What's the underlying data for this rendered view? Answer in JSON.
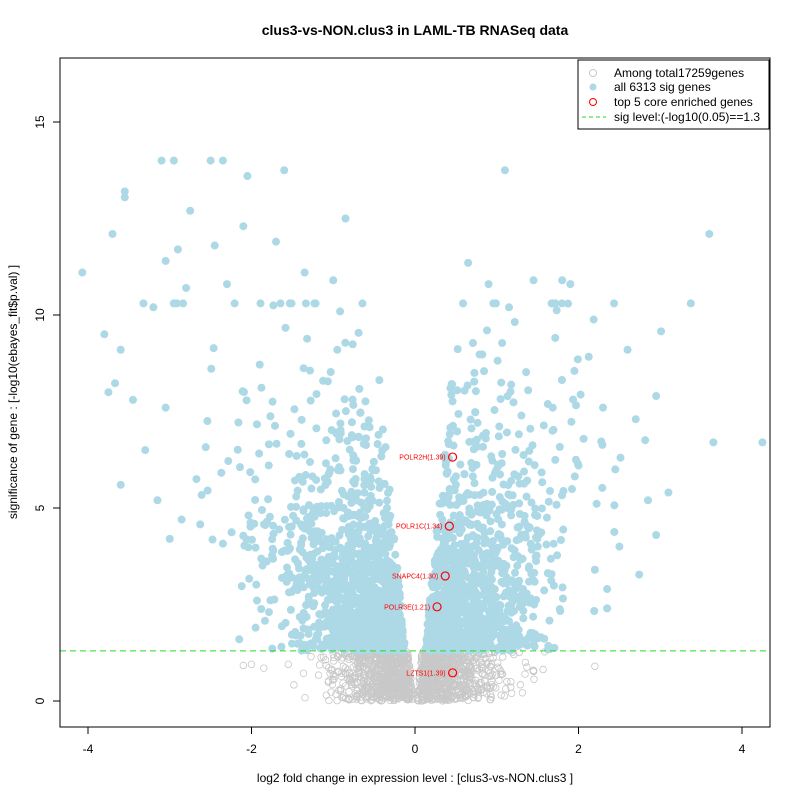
{
  "chart_data": {
    "type": "scatter",
    "title": "clus3-vs-NON.clus3 in LAML-TB RNASeq data",
    "xlabel": "log2 fold change in expression level : [clus3-vs-NON.clus3 ]",
    "ylabel": "significance of gene : [-log10(ebayes_fit$p.val) ]",
    "xlim": [
      -4.3,
      4.3
    ],
    "ylim": [
      -0.6,
      16.7
    ],
    "x_ticks": [
      "-4",
      "-2",
      "0",
      "2",
      "4"
    ],
    "x_tick_values": [
      -4,
      -2,
      0,
      2,
      4
    ],
    "y_ticks": [
      "0",
      "5",
      "10",
      "15"
    ],
    "y_tick_values": [
      0,
      5,
      10,
      15
    ],
    "sig_threshold": 1.3,
    "legend": {
      "placement": "top-right",
      "entries": [
        "Among total17259genes",
        "all 6313 sig genes",
        "top 5 core enriched genes",
        "sig level:(-log10(0.05)==1.3"
      ]
    },
    "colors": {
      "all": "#c8c8c8",
      "sig": "#add8e6",
      "top": "#ff0000",
      "threshold": "#22dd22",
      "text": "#000000"
    },
    "total_genes": 17259,
    "sig_genes": 6313,
    "top_genes": [
      {
        "label": "POLR2H(1.39)",
        "x": 0.46,
        "y": 6.32
      },
      {
        "label": "POLR1C(1.34)",
        "x": 0.42,
        "y": 4.53
      },
      {
        "label": "SNAPC4(1.30)",
        "x": 0.37,
        "y": 3.24
      },
      {
        "label": "POLR3E(1.21)",
        "x": 0.27,
        "y": 2.44
      },
      {
        "label": "LZTS1(1.39)",
        "x": 0.46,
        "y": 0.73
      }
    ],
    "sig_outliers": [
      [
        -4.07,
        11.1
      ],
      [
        -3.8,
        9.5
      ],
      [
        -3.7,
        12.1
      ],
      [
        -3.75,
        8.0
      ],
      [
        -3.55,
        13.2
      ],
      [
        -3.55,
        13.05
      ],
      [
        -3.6,
        9.1
      ],
      [
        -3.6,
        5.6
      ],
      [
        -3.3,
        6.5
      ],
      [
        -3.2,
        10.2
      ],
      [
        -3.15,
        5.2
      ],
      [
        -3.1,
        14.0
      ],
      [
        -3.05,
        11.4
      ],
      [
        -3.0,
        4.2
      ],
      [
        -2.95,
        14.0
      ],
      [
        -2.9,
        11.7
      ],
      [
        -2.75,
        12.7
      ],
      [
        -2.5,
        14.0
      ],
      [
        -2.45,
        11.8
      ],
      [
        -2.35,
        14.0
      ],
      [
        -2.05,
        13.6
      ],
      [
        -2.1,
        12.3
      ],
      [
        -1.6,
        13.75
      ],
      [
        -0.85,
        12.5
      ],
      [
        -2.15,
        1.6
      ],
      [
        -3.45,
        7.8
      ],
      [
        -3.05,
        7.6
      ],
      [
        -2.8,
        10.7
      ],
      [
        -2.3,
        10.8
      ],
      [
        -1.7,
        11.9
      ],
      [
        -1.35,
        11.1
      ],
      [
        -1.0,
        10.9
      ],
      [
        1.1,
        13.75
      ],
      [
        3.6,
        12.1
      ],
      [
        3.65,
        6.7
      ],
      [
        4.25,
        6.7
      ],
      [
        3.1,
        5.4
      ],
      [
        2.95,
        7.9
      ],
      [
        2.95,
        4.3
      ],
      [
        2.6,
        9.1
      ],
      [
        2.45,
        6.0
      ],
      [
        1.9,
        10.8
      ],
      [
        1.8,
        10.9
      ],
      [
        0.65,
        11.35
      ],
      [
        1.45,
        10.9
      ],
      [
        1.15,
        10.2
      ],
      [
        0.9,
        10.8
      ],
      [
        2.85,
        5.2
      ],
      [
        2.7,
        7.3
      ],
      [
        2.2,
        3.4
      ],
      [
        2.35,
        2.9
      ],
      [
        2.5,
        4.0
      ],
      [
        1.65,
        1.35
      ],
      [
        -1.95,
        1.9
      ],
      [
        2.35,
        2.4
      ],
      [
        2.3,
        7.6
      ],
      [
        2.0,
        6.1
      ]
    ],
    "nonsig_outliers": [
      [
        2.2,
        0.9
      ],
      [
        -2.0,
        0.95
      ],
      [
        -1.85,
        0.85
      ],
      [
        -1.55,
        0.95
      ],
      [
        1.35,
        1.0
      ],
      [
        -2.1,
        0.92
      ]
    ]
  }
}
